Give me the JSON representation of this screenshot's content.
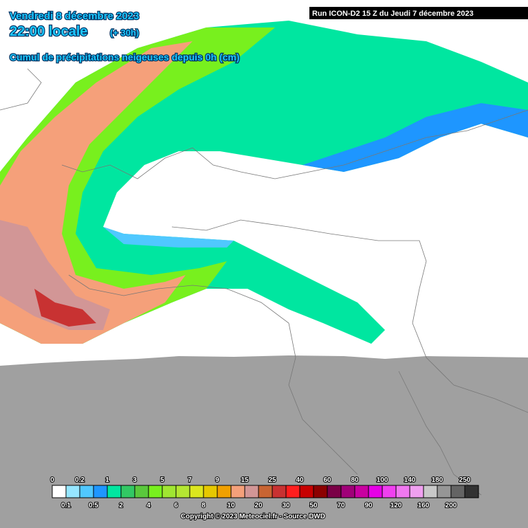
{
  "header": {
    "date": "Vendredi 8 décembre 2023",
    "time": "22:00 locale",
    "offset": "(+ 30h)",
    "subtitle": "Cumul de précipitations neigeuses depuis 0h (cm)",
    "run": "Run ICON-D2 15 Z du Jeudi 7 décembre 2023"
  },
  "legend": {
    "labels": [
      "0",
      "0.1",
      "0.2",
      "0.5",
      "1",
      "2",
      "3",
      "4",
      "5",
      "6",
      "7",
      "8",
      "9",
      "10",
      "15",
      "20",
      "25",
      "30",
      "40",
      "50",
      "60",
      "70",
      "80",
      "90",
      "100",
      "120",
      "140",
      "160",
      "180",
      "200",
      "250"
    ],
    "colors": [
      "#ffffff",
      "#96e6ff",
      "#50c8ff",
      "#1e96ff",
      "#00e6a0",
      "#32c864",
      "#5ac83c",
      "#78f01e",
      "#a0e632",
      "#b4e632",
      "#dce61e",
      "#e6c800",
      "#f0a000",
      "#f5a07a",
      "#d29696",
      "#c86432",
      "#c83232",
      "#ff1e1e",
      "#c80000",
      "#8c0000",
      "#7a0046",
      "#a00078",
      "#c800a0",
      "#e600e6",
      "#f040f0",
      "#f078f0",
      "#f0a0f0",
      "#c8c8c8",
      "#969696",
      "#646464",
      "#323232"
    ]
  },
  "footer": {
    "copyright": "Copyright © 2023 Meteociel.fr - Source DWD"
  }
}
